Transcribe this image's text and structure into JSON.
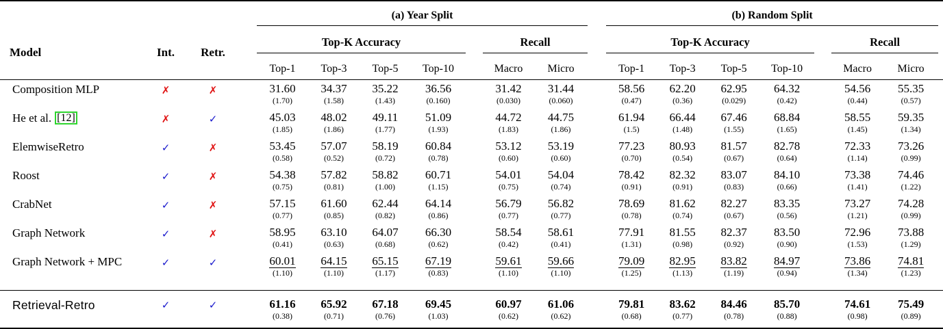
{
  "header": {
    "section_a": "(a) Year Split",
    "section_b": "(b) Random Split",
    "model": "Model",
    "int": "Int.",
    "retr": "Retr.",
    "topk": "Top-K Accuracy",
    "recall": "Recall",
    "topk_cols": [
      "Top-1",
      "Top-3",
      "Top-5",
      "Top-10"
    ],
    "recall_cols": [
      "Macro",
      "Micro"
    ]
  },
  "marks": {
    "check": "✓",
    "cross": "✗"
  },
  "colors": {
    "check_blue": "#1a1acd",
    "cross_red": "#e01313",
    "citation_green": "#2ed52e"
  },
  "rows": [
    {
      "model": "Composition MLP",
      "cite": "",
      "int": "cross",
      "retr": "cross",
      "underline": false,
      "bold": false,
      "sans_model": false,
      "year": {
        "values": [
          "31.60",
          "34.37",
          "35.22",
          "36.56",
          "31.42",
          "31.44"
        ],
        "stds": [
          "(1.70)",
          "(1.58)",
          "(1.43)",
          "(0.160)",
          "(0.030)",
          "(0.060)"
        ]
      },
      "random": {
        "values": [
          "58.56",
          "62.20",
          "62.95",
          "64.32",
          "54.56",
          "55.35"
        ],
        "stds": [
          "(0.47)",
          "(0.36)",
          "(0.029)",
          "(0.42)",
          "(0.44)",
          "(0.57)"
        ]
      }
    },
    {
      "model": "He et al.",
      "cite": "[12]",
      "int": "cross",
      "retr": "check",
      "underline": false,
      "bold": false,
      "sans_model": false,
      "year": {
        "values": [
          "45.03",
          "48.02",
          "49.11",
          "51.09",
          "44.72",
          "44.75"
        ],
        "stds": [
          "(1.85)",
          "(1.86)",
          "(1.77)",
          "(1.93)",
          "(1.83)",
          "(1.86)"
        ]
      },
      "random": {
        "values": [
          "61.94",
          "66.44",
          "67.46",
          "68.84",
          "58.55",
          "59.35"
        ],
        "stds": [
          "(1.5)",
          "(1.48)",
          "(1.55)",
          "(1.65)",
          "(1.45)",
          "(1.34)"
        ]
      }
    },
    {
      "model": "ElemwiseRetro",
      "cite": "",
      "int": "check",
      "retr": "cross",
      "underline": false,
      "bold": false,
      "sans_model": false,
      "year": {
        "values": [
          "53.45",
          "57.07",
          "58.19",
          "60.84",
          "53.12",
          "53.19"
        ],
        "stds": [
          "(0.58)",
          "(0.52)",
          "(0.72)",
          "(0.78)",
          "(0.60)",
          "(0.60)"
        ]
      },
      "random": {
        "values": [
          "77.23",
          "80.93",
          "81.57",
          "82.78",
          "72.33",
          "73.26"
        ],
        "stds": [
          "(0.70)",
          "(0.54)",
          "(0.67)",
          "(0.64)",
          "(1.14)",
          "(0.99)"
        ]
      }
    },
    {
      "model": "Roost",
      "cite": "",
      "int": "check",
      "retr": "cross",
      "underline": false,
      "bold": false,
      "sans_model": false,
      "year": {
        "values": [
          "54.38",
          "57.82",
          "58.82",
          "60.71",
          "54.01",
          "54.04"
        ],
        "stds": [
          "(0.75)",
          "(0.81)",
          "(1.00)",
          "(1.15)",
          "(0.75)",
          "(0.74)"
        ]
      },
      "random": {
        "values": [
          "78.42",
          "82.32",
          "83.07",
          "84.10",
          "73.38",
          "74.46"
        ],
        "stds": [
          "(0.91)",
          "(0.91)",
          "(0.83)",
          "(0.66)",
          "(1.41)",
          "(1.22)"
        ]
      }
    },
    {
      "model": "CrabNet",
      "cite": "",
      "int": "check",
      "retr": "cross",
      "underline": false,
      "bold": false,
      "sans_model": false,
      "year": {
        "values": [
          "57.15",
          "61.60",
          "62.44",
          "64.14",
          "56.79",
          "56.82"
        ],
        "stds": [
          "(0.77)",
          "(0.85)",
          "(0.82)",
          "(0.86)",
          "(0.77)",
          "(0.77)"
        ]
      },
      "random": {
        "values": [
          "78.69",
          "81.62",
          "82.27",
          "83.35",
          "73.27",
          "74.28"
        ],
        "stds": [
          "(0.78)",
          "(0.74)",
          "(0.67)",
          "(0.56)",
          "(1.21)",
          "(0.99)"
        ]
      }
    },
    {
      "model": "Graph Network",
      "cite": "",
      "int": "check",
      "retr": "cross",
      "underline": false,
      "bold": false,
      "sans_model": false,
      "year": {
        "values": [
          "58.95",
          "63.10",
          "64.07",
          "66.30",
          "58.54",
          "58.61"
        ],
        "stds": [
          "(0.41)",
          "(0.63)",
          "(0.68)",
          "(0.62)",
          "(0.42)",
          "(0.41)"
        ]
      },
      "random": {
        "values": [
          "77.91",
          "81.55",
          "82.37",
          "83.50",
          "72.96",
          "73.88"
        ],
        "stds": [
          "(1.31)",
          "(0.98)",
          "(0.92)",
          "(0.90)",
          "(1.53)",
          "(1.29)"
        ]
      }
    },
    {
      "model": "Graph Network + MPC",
      "cite": "",
      "int": "check",
      "retr": "check",
      "underline": true,
      "bold": false,
      "sans_model": false,
      "year": {
        "values": [
          "60.01",
          "64.15",
          "65.15",
          "67.19",
          "59.61",
          "59.66"
        ],
        "stds": [
          "(1.10)",
          "(1.10)",
          "(1.17)",
          "(0.83)",
          "(1.10)",
          "(1.10)"
        ]
      },
      "random": {
        "values": [
          "79.09",
          "82.95",
          "83.82",
          "84.97",
          "73.86",
          "74.81"
        ],
        "stds": [
          "(1.25)",
          "(1.13)",
          "(1.19)",
          "(0.94)",
          "(1.34)",
          "(1.23)"
        ]
      }
    },
    {
      "model": "Retrieval-Retro",
      "cite": "",
      "int": "check",
      "retr": "check",
      "underline": false,
      "bold": true,
      "sans_model": true,
      "year": {
        "values": [
          "61.16",
          "65.92",
          "67.18",
          "69.45",
          "60.97",
          "61.06"
        ],
        "stds": [
          "(0.38)",
          "(0.71)",
          "(0.76)",
          "(1.03)",
          "(0.62)",
          "(0.62)"
        ]
      },
      "random": {
        "values": [
          "79.81",
          "83.62",
          "84.46",
          "85.70",
          "74.61",
          "75.49"
        ],
        "stds": [
          "(0.68)",
          "(0.77)",
          "(0.78)",
          "(0.88)",
          "(0.98)",
          "(0.89)"
        ]
      }
    }
  ]
}
